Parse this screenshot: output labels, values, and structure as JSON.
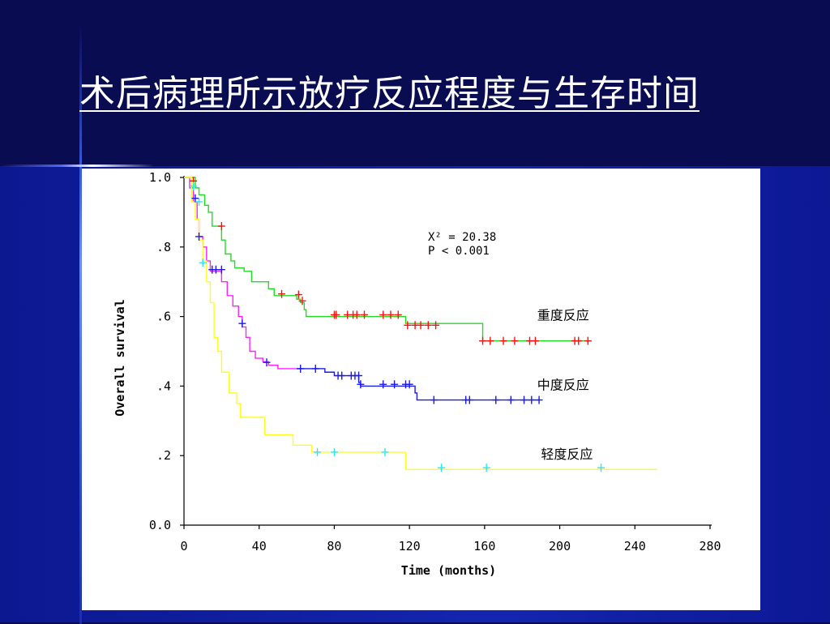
{
  "slide": {
    "title": "术后病理所示放疗反应程度与生存时间"
  },
  "chart_data": {
    "type": "line",
    "subtype": "kaplan-meier step",
    "xlabel": "Time (months)",
    "ylabel": "Overall survival",
    "xlim": [
      0,
      280
    ],
    "ylim": [
      0,
      1
    ],
    "xticks": [
      0,
      40,
      80,
      120,
      160,
      200,
      240,
      280
    ],
    "xtick_labels": [
      "0",
      "40",
      "80",
      "120",
      "160",
      "200",
      "240",
      "280"
    ],
    "yticks": [
      0,
      0.2,
      0.4,
      0.6,
      0.8,
      1.0
    ],
    "ytick_labels": [
      "0.0",
      ".2",
      ".4",
      ".6",
      ".8",
      "1.0"
    ],
    "grid": false,
    "stats": {
      "line1": "X² = 20.38",
      "line2": "P  < 0.001"
    },
    "series": [
      {
        "name": "重度反应",
        "color": "#22dd22",
        "censor_color": "#ff1010",
        "steps": [
          [
            0,
            1.0
          ],
          [
            6,
            1.0
          ],
          [
            6,
            0.97
          ],
          [
            8,
            0.97
          ],
          [
            8,
            0.95
          ],
          [
            11,
            0.95
          ],
          [
            11,
            0.92
          ],
          [
            13,
            0.92
          ],
          [
            13,
            0.9
          ],
          [
            15,
            0.9
          ],
          [
            15,
            0.86
          ],
          [
            20,
            0.86
          ],
          [
            20,
            0.82
          ],
          [
            22,
            0.82
          ],
          [
            22,
            0.78
          ],
          [
            25,
            0.78
          ],
          [
            25,
            0.76
          ],
          [
            27,
            0.76
          ],
          [
            27,
            0.74
          ],
          [
            32,
            0.74
          ],
          [
            32,
            0.73
          ],
          [
            36,
            0.73
          ],
          [
            36,
            0.7
          ],
          [
            45,
            0.7
          ],
          [
            45,
            0.68
          ],
          [
            48,
            0.68
          ],
          [
            48,
            0.66
          ],
          [
            60,
            0.66
          ],
          [
            60,
            0.65
          ],
          [
            62,
            0.65
          ],
          [
            62,
            0.64
          ],
          [
            64,
            0.64
          ],
          [
            64,
            0.62
          ],
          [
            65,
            0.62
          ],
          [
            65,
            0.6
          ],
          [
            118,
            0.6
          ],
          [
            118,
            0.58
          ],
          [
            159,
            0.58
          ],
          [
            159,
            0.53
          ],
          [
            215,
            0.53
          ]
        ],
        "censored": [
          [
            5,
            0.99
          ],
          [
            20,
            0.86
          ],
          [
            52,
            0.665
          ],
          [
            61,
            0.663
          ],
          [
            63,
            0.645
          ],
          [
            80,
            0.605
          ],
          [
            81,
            0.605
          ],
          [
            87,
            0.605
          ],
          [
            90,
            0.605
          ],
          [
            92,
            0.605
          ],
          [
            96,
            0.605
          ],
          [
            106,
            0.605
          ],
          [
            110,
            0.605
          ],
          [
            114,
            0.605
          ],
          [
            119,
            0.575
          ],
          [
            123,
            0.575
          ],
          [
            126,
            0.575
          ],
          [
            130,
            0.575
          ],
          [
            134,
            0.575
          ],
          [
            159,
            0.53
          ],
          [
            163,
            0.53
          ],
          [
            170,
            0.53
          ],
          [
            176,
            0.53
          ],
          [
            184,
            0.53
          ],
          [
            187,
            0.53
          ],
          [
            208,
            0.53
          ],
          [
            210,
            0.53
          ],
          [
            215,
            0.53
          ]
        ],
        "label_at": [
          188,
          0.6
        ]
      },
      {
        "name": "中度反应",
        "color": "#ff22ff",
        "censor_color": "#1a1aee",
        "late_color": "#1a1aee",
        "late_from": 60,
        "steps": [
          [
            0,
            1.0
          ],
          [
            3,
            1.0
          ],
          [
            3,
            0.97
          ],
          [
            5,
            0.97
          ],
          [
            5,
            0.93
          ],
          [
            7,
            0.93
          ],
          [
            7,
            0.88
          ],
          [
            8,
            0.88
          ],
          [
            8,
            0.83
          ],
          [
            10,
            0.83
          ],
          [
            10,
            0.8
          ],
          [
            12,
            0.8
          ],
          [
            12,
            0.76
          ],
          [
            14,
            0.76
          ],
          [
            14,
            0.73
          ],
          [
            20,
            0.73
          ],
          [
            20,
            0.7
          ],
          [
            23,
            0.7
          ],
          [
            23,
            0.66
          ],
          [
            26,
            0.66
          ],
          [
            26,
            0.63
          ],
          [
            29,
            0.63
          ],
          [
            29,
            0.6
          ],
          [
            31,
            0.6
          ],
          [
            31,
            0.57
          ],
          [
            33,
            0.57
          ],
          [
            33,
            0.54
          ],
          [
            35,
            0.54
          ],
          [
            35,
            0.5
          ],
          [
            38,
            0.5
          ],
          [
            38,
            0.48
          ],
          [
            42,
            0.48
          ],
          [
            42,
            0.47
          ],
          [
            45,
            0.47
          ],
          [
            45,
            0.46
          ],
          [
            50,
            0.46
          ],
          [
            50,
            0.45
          ],
          [
            75,
            0.45
          ],
          [
            75,
            0.44
          ],
          [
            80,
            0.44
          ],
          [
            80,
            0.43
          ],
          [
            93,
            0.43
          ],
          [
            93,
            0.41
          ],
          [
            94,
            0.41
          ],
          [
            94,
            0.4
          ],
          [
            123,
            0.4
          ],
          [
            123,
            0.38
          ],
          [
            124,
            0.38
          ],
          [
            124,
            0.36
          ],
          [
            189,
            0.36
          ]
        ],
        "censored": [
          [
            6,
            0.94
          ],
          [
            8,
            0.83
          ],
          [
            15,
            0.735
          ],
          [
            17,
            0.735
          ],
          [
            20,
            0.735
          ],
          [
            31,
            0.58
          ],
          [
            44,
            0.468
          ],
          [
            62,
            0.45
          ],
          [
            70,
            0.45
          ],
          [
            82,
            0.43
          ],
          [
            84,
            0.43
          ],
          [
            89,
            0.43
          ],
          [
            91,
            0.43
          ],
          [
            93,
            0.43
          ],
          [
            94,
            0.405
          ],
          [
            106,
            0.405
          ],
          [
            112,
            0.405
          ],
          [
            118,
            0.405
          ],
          [
            120,
            0.405
          ],
          [
            133,
            0.36
          ],
          [
            150,
            0.36
          ],
          [
            152,
            0.36
          ],
          [
            166,
            0.36
          ],
          [
            174,
            0.36
          ],
          [
            181,
            0.36
          ],
          [
            185,
            0.36
          ],
          [
            189,
            0.36
          ]
        ],
        "label_at": [
          188,
          0.4
        ]
      },
      {
        "name": "轻度反应",
        "color": "#ffff22",
        "censor_color": "#22e8ff",
        "steps": [
          [
            0,
            1.0
          ],
          [
            4,
            1.0
          ],
          [
            4,
            0.93
          ],
          [
            6,
            0.93
          ],
          [
            6,
            0.88
          ],
          [
            8,
            0.88
          ],
          [
            8,
            0.82
          ],
          [
            10,
            0.82
          ],
          [
            10,
            0.76
          ],
          [
            12,
            0.76
          ],
          [
            12,
            0.7
          ],
          [
            14,
            0.7
          ],
          [
            14,
            0.64
          ],
          [
            16,
            0.64
          ],
          [
            16,
            0.54
          ],
          [
            18,
            0.54
          ],
          [
            18,
            0.5
          ],
          [
            20,
            0.5
          ],
          [
            20,
            0.44
          ],
          [
            24,
            0.44
          ],
          [
            24,
            0.38
          ],
          [
            28,
            0.38
          ],
          [
            28,
            0.35
          ],
          [
            30,
            0.35
          ],
          [
            30,
            0.31
          ],
          [
            43,
            0.31
          ],
          [
            43,
            0.26
          ],
          [
            58,
            0.26
          ],
          [
            58,
            0.23
          ],
          [
            68,
            0.23
          ],
          [
            68,
            0.21
          ],
          [
            118,
            0.21
          ],
          [
            118,
            0.16
          ],
          [
            252,
            0.16
          ]
        ],
        "censored": [
          [
            5,
            0.975
          ],
          [
            8,
            0.93
          ],
          [
            10,
            0.755
          ],
          [
            71,
            0.21
          ],
          [
            80,
            0.21
          ],
          [
            107,
            0.21
          ],
          [
            137,
            0.165
          ],
          [
            161,
            0.165
          ],
          [
            222,
            0.165
          ]
        ],
        "label_at": [
          190,
          0.2
        ]
      }
    ]
  }
}
